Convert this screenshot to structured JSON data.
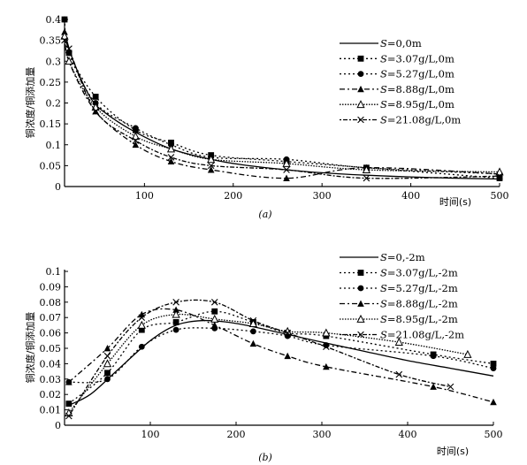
{
  "chart_data": [
    {
      "type": "line",
      "panel_label": "(a)",
      "xlabel": "时间(s)",
      "ylabel": "铜浓度/铜添加量",
      "xlim": [
        10,
        500
      ],
      "ylim": [
        0,
        0.4
      ],
      "x_ticks": [
        "100",
        "200",
        "300",
        "400",
        "500"
      ],
      "x_tick_values": [
        100,
        200,
        300,
        400,
        500
      ],
      "y_ticks": [
        "0",
        "0.05",
        "0.1",
        "0.15",
        "0.2",
        "0.25",
        "0.3",
        "0.35",
        "0.4"
      ],
      "y_tick_values": [
        0,
        0.05,
        0.1,
        0.15,
        0.2,
        0.25,
        0.3,
        0.35,
        0.4
      ],
      "legend_position": "top-right",
      "series": [
        {
          "name": "S=0,0m",
          "marker": "none",
          "dash": "solid",
          "x": [
            10,
            20,
            40,
            60,
            90,
            130,
            175,
            210,
            260,
            300,
            350,
            400,
            450,
            500
          ],
          "y": [
            0.37,
            0.3,
            0.21,
            0.17,
            0.13,
            0.09,
            0.065,
            0.052,
            0.04,
            0.033,
            0.027,
            0.023,
            0.02,
            0.018
          ]
        },
        {
          "name": "S=3.07g/L,0m",
          "marker": "square",
          "dash": "dotted",
          "x": [
            10,
            15,
            45,
            90,
            130,
            175,
            260,
            350,
            500
          ],
          "y": [
            0.4,
            0.32,
            0.215,
            0.135,
            0.105,
            0.075,
            0.06,
            0.045,
            0.02
          ]
        },
        {
          "name": "S=5.27g/L,0m",
          "marker": "circle",
          "dash": "dotted",
          "x": [
            10,
            15,
            45,
            90,
            130,
            175,
            260,
            350,
            500
          ],
          "y": [
            0.4,
            0.32,
            0.2,
            0.14,
            0.1,
            0.07,
            0.065,
            0.045,
            0.03
          ]
        },
        {
          "name": "S=8.88g/L,0m",
          "marker": "triangle",
          "dash": "dashdot",
          "x": [
            10,
            15,
            45,
            90,
            130,
            175,
            260,
            350,
            500
          ],
          "y": [
            0.37,
            0.3,
            0.18,
            0.1,
            0.06,
            0.04,
            0.02,
            0.045,
            0.03
          ]
        },
        {
          "name": "S=8.95g/L,0m",
          "marker": "triangle-open",
          "dash": "dense",
          "x": [
            10,
            15,
            45,
            90,
            130,
            175,
            260,
            350,
            500
          ],
          "y": [
            0.36,
            0.3,
            0.19,
            0.12,
            0.09,
            0.065,
            0.055,
            0.04,
            0.035
          ]
        },
        {
          "name": "S=21.08g/L,0m",
          "marker": "x",
          "dash": "dotdash",
          "x": [
            10,
            15,
            45,
            90,
            130,
            175,
            260,
            350,
            500
          ],
          "y": [
            0.35,
            0.33,
            0.18,
            0.11,
            0.07,
            0.05,
            0.04,
            0.02,
            0.025
          ]
        }
      ]
    },
    {
      "type": "line",
      "panel_label": "(b)",
      "xlabel": "时间(s)",
      "ylabel": "铜浓度/铜添加量",
      "xlim": [
        0,
        500
      ],
      "ylim": [
        0,
        0.1
      ],
      "x_ticks": [
        "100",
        "200",
        "300",
        "400",
        "500"
      ],
      "x_tick_values": [
        100,
        200,
        300,
        400,
        500
      ],
      "y_ticks": [
        "0",
        "0.01",
        "0.02",
        "0.03",
        "0.04",
        "0.05",
        "0.06",
        "0.07",
        "0.08",
        "0.09",
        "0.1"
      ],
      "y_tick_values": [
        0,
        0.01,
        0.02,
        0.03,
        0.04,
        0.05,
        0.06,
        0.07,
        0.08,
        0.09,
        0.1
      ],
      "legend_position": "top-right",
      "series": [
        {
          "name": "S=0,-2m",
          "marker": "none",
          "dash": "solid",
          "x": [
            5,
            30,
            60,
            100,
            130,
            160,
            190,
            220,
            260,
            300,
            350,
            400,
            450,
            500
          ],
          "y": [
            0.013,
            0.02,
            0.035,
            0.055,
            0.065,
            0.068,
            0.067,
            0.064,
            0.059,
            0.054,
            0.048,
            0.042,
            0.037,
            0.032
          ]
        },
        {
          "name": "S=3.07g/L,-2m",
          "marker": "square",
          "dash": "dotted",
          "x": [
            5,
            50,
            90,
            130,
            175,
            220,
            260,
            305,
            430,
            500
          ],
          "y": [
            0.014,
            0.034,
            0.062,
            0.067,
            0.074,
            0.067,
            0.06,
            0.058,
            0.046,
            0.04
          ]
        },
        {
          "name": "S=5.27g/L,-2m",
          "marker": "circle",
          "dash": "dotted",
          "x": [
            5,
            50,
            90,
            130,
            175,
            220,
            260,
            305,
            430,
            500
          ],
          "y": [
            0.028,
            0.03,
            0.051,
            0.062,
            0.063,
            0.061,
            0.058,
            0.052,
            0.045,
            0.037
          ]
        },
        {
          "name": "S=8.88g/L,-2m",
          "marker": "triangle",
          "dash": "dashdot",
          "x": [
            5,
            50,
            90,
            130,
            175,
            220,
            260,
            305,
            430,
            500
          ],
          "y": [
            0.028,
            0.05,
            0.072,
            0.075,
            0.065,
            0.053,
            0.045,
            0.038,
            0.025,
            0.015
          ]
        },
        {
          "name": "S=8.95g/L,-2m",
          "marker": "triangle-open",
          "dash": "dense",
          "x": [
            5,
            50,
            90,
            130,
            175,
            220,
            260,
            305,
            390,
            470
          ],
          "y": [
            0.008,
            0.04,
            0.065,
            0.072,
            0.069,
            0.066,
            0.061,
            0.06,
            0.054,
            0.046
          ]
        },
        {
          "name": "S=21.08g/L,-2m",
          "marker": "x",
          "dash": "dotdash",
          "x": [
            5,
            50,
            90,
            130,
            175,
            220,
            260,
            305,
            390,
            450
          ],
          "y": [
            0.006,
            0.045,
            0.07,
            0.08,
            0.08,
            0.068,
            0.06,
            0.051,
            0.033,
            0.025
          ]
        }
      ]
    }
  ]
}
